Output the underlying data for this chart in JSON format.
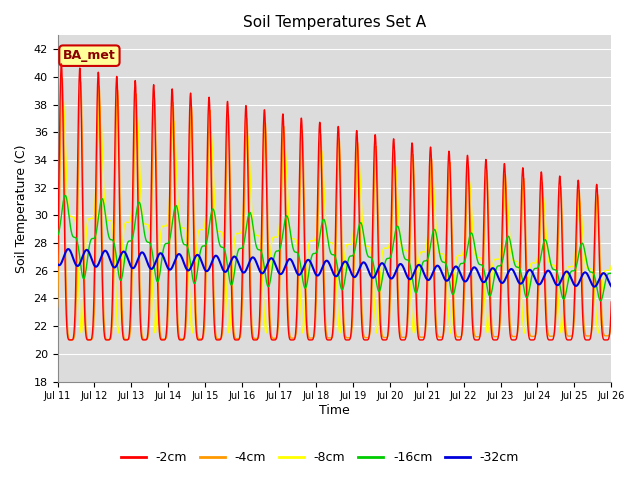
{
  "title": "Soil Temperatures Set A",
  "xlabel": "Time",
  "ylabel": "Soil Temperature (C)",
  "ylim": [
    18,
    43
  ],
  "yticks": [
    18,
    20,
    22,
    24,
    26,
    28,
    30,
    32,
    34,
    36,
    38,
    40,
    42
  ],
  "background_color": "#dcdcdc",
  "series": {
    "-2cm": {
      "color": "#ff0000",
      "lw": 1.0
    },
    "-4cm": {
      "color": "#ff9900",
      "lw": 1.0
    },
    "-8cm": {
      "color": "#ffff00",
      "lw": 1.0
    },
    "-16cm": {
      "color": "#00cc00",
      "lw": 1.0
    },
    "-32cm": {
      "color": "#0000dd",
      "lw": 1.5
    }
  },
  "legend_label": "BA_met",
  "legend_box_color": "#ffff99",
  "legend_box_edge": "#cc0000",
  "xlim_days": [
    0,
    15
  ],
  "x_tick_labels": [
    "Jul 11",
    "Jul 12",
    "Jul 13",
    "Jul 14",
    "Jul 15",
    "Jul 16",
    "Jul 17",
    "Jul 18",
    "Jul 19",
    "Jul 20",
    "Jul 21",
    "Jul 22",
    "Jul 23",
    "Jul 24",
    "Jul 25",
    "Jul 26"
  ]
}
